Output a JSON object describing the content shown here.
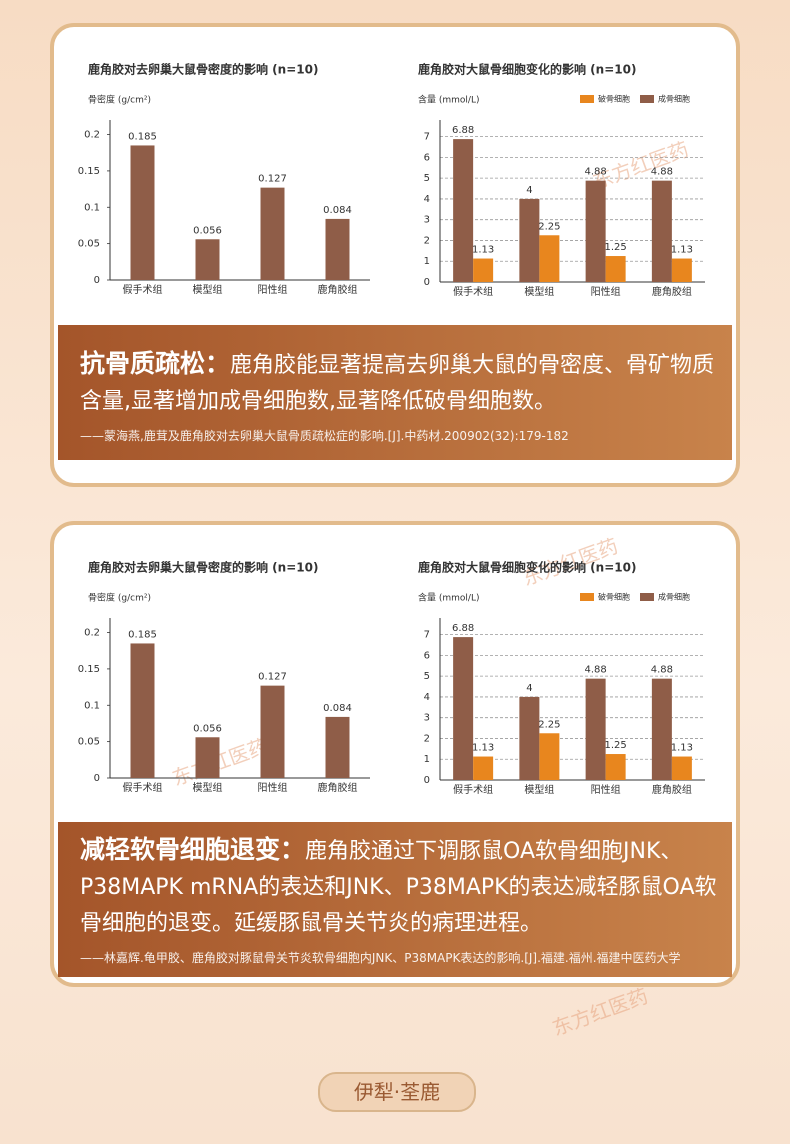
{
  "chart_data": [
    {
      "type": "bar",
      "title": "鹿角胶对去卵巢大鼠骨密度的影响 (n=10)",
      "y_label": "骨密度 (g/cm²)",
      "categories": [
        "假手术组",
        "模型组",
        "阳性组",
        "鹿角胶组"
      ],
      "values": [
        0.185,
        0.056,
        0.127,
        0.084
      ],
      "color": "#8f5d48",
      "ylim": [
        0,
        0.22
      ],
      "yticks": [
        0,
        0.05,
        0.1,
        0.15,
        0.2
      ],
      "grid": false
    },
    {
      "type": "bar",
      "title": "鹿角胶对大鼠骨细胞变化的影响 (n=10)",
      "y_label": "含量 (mmol/L)",
      "categories": [
        "假手术组",
        "模型组",
        "阳性组",
        "鹿角胶组"
      ],
      "series": [
        {
          "name": "成骨细胞",
          "color": "#8f5d48",
          "values": [
            6.88,
            4,
            4.88,
            4.88
          ]
        },
        {
          "name": "破骨细胞",
          "color": "#e8861e",
          "values": [
            1.13,
            2.25,
            1.25,
            1.13
          ]
        }
      ],
      "ylim": [
        0,
        7.8
      ],
      "yticks": [
        0,
        1,
        2,
        3,
        4,
        5,
        6,
        7
      ],
      "grid": true,
      "legend": "top-right"
    },
    {
      "type": "bar",
      "title": "鹿角胶对去卵巢大鼠骨密度的影响 (n=10)",
      "y_label": "骨密度 (g/cm²)",
      "categories": [
        "假手术组",
        "模型组",
        "阳性组",
        "鹿角胶组"
      ],
      "values": [
        0.185,
        0.056,
        0.127,
        0.084
      ],
      "color": "#8f5d48",
      "ylim": [
        0,
        0.22
      ],
      "yticks": [
        0,
        0.05,
        0.1,
        0.15,
        0.2
      ],
      "grid": false
    },
    {
      "type": "bar",
      "title": "鹿角胶对大鼠骨细胞变化的影响 (n=10)",
      "y_label": "含量 (mmol/L)",
      "categories": [
        "假手术组",
        "模型组",
        "阳性组",
        "鹿角胶组"
      ],
      "series": [
        {
          "name": "成骨细胞",
          "color": "#8f5d48",
          "values": [
            6.88,
            4,
            4.88,
            4.88
          ]
        },
        {
          "name": "破骨细胞",
          "color": "#e8861e",
          "values": [
            1.13,
            2.25,
            1.25,
            1.13
          ]
        }
      ],
      "ylim": [
        0,
        7.8
      ],
      "yticks": [
        0,
        1,
        2,
        3,
        4,
        5,
        6,
        7
      ],
      "grid": true,
      "legend": "top-right"
    }
  ],
  "panels": [
    {
      "heading": "抗骨质疏松：",
      "body": "鹿角胶能显著提高去卵巢大鼠的骨密度、骨矿物质含量,显著增加成骨细胞数,显著降低破骨细胞数。",
      "citation": "——蒙海燕,鹿茸及鹿角胶对去卵巢大鼠骨质疏松症的影响.[J].中药材.200902(32):179-182"
    },
    {
      "heading": "减轻软骨细胞退变：",
      "body": "鹿角胶通过下调豚鼠OA软骨细胞JNK、P38MAPK mRNA的表达和JNK、P38MAPK的表达减轻豚鼠OA软骨细胞的退变。延缓豚鼠骨关节炎的病理进程。",
      "citation": "——林嘉辉.龟甲胶、鹿角胶对豚鼠骨关节炎软骨细胞内JNK、P38MAPK表达的影响.[J].福建.福州.福建中医药大学"
    }
  ],
  "watermark": "东方红医药",
  "footer": "伊犁·荃鹿"
}
